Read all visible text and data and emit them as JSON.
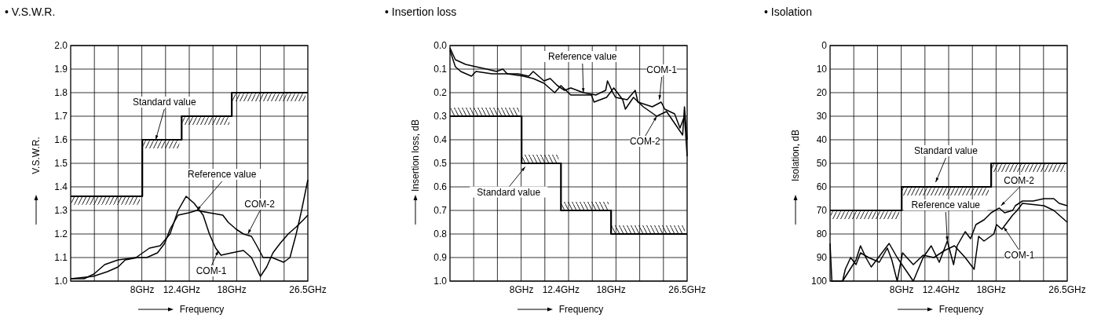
{
  "chart_data": [
    {
      "type": "line",
      "title": "• V.S.W.R.",
      "xlabel": "Frequency",
      "ylabel": "V.S.W.R.",
      "xlim": [
        0,
        26.5
      ],
      "xticks": [
        {
          "value": 8,
          "label": "8GHz"
        },
        {
          "value": 12.4,
          "label": "12.4GHz"
        },
        {
          "value": 18,
          "label": "18GHz"
        },
        {
          "value": 26.5,
          "label": "26.5GHz"
        },
        {
          "value": 2.65,
          "label": null
        },
        {
          "value": 5.3,
          "label": null
        },
        {
          "value": 7.95,
          "label": null
        },
        {
          "value": 10.6,
          "label": null
        },
        {
          "value": 13.25,
          "label": null
        },
        {
          "value": 15.9,
          "label": null
        },
        {
          "value": 18.55,
          "label": null
        },
        {
          "value": 21.2,
          "label": null
        },
        {
          "value": 23.85,
          "label": null
        }
      ],
      "ylim": [
        1.0,
        2.0
      ],
      "yticks": [
        {
          "value": 1.0,
          "label": "1.0"
        },
        {
          "value": 1.1,
          "label": "1.1"
        },
        {
          "value": 1.2,
          "label": "1.2"
        },
        {
          "value": 1.3,
          "label": "1.3"
        },
        {
          "value": 1.4,
          "label": "1.4"
        },
        {
          "value": 1.5,
          "label": "1.5"
        },
        {
          "value": 1.6,
          "label": "1.6"
        },
        {
          "value": 1.7,
          "label": "1.7"
        },
        {
          "value": 1.8,
          "label": "1.8"
        },
        {
          "value": 1.9,
          "label": "1.9"
        },
        {
          "value": 2.0,
          "label": "2.0"
        }
      ],
      "grid": true,
      "annotations": [
        {
          "text": "Standard value",
          "x": 9.5,
          "y": 1.6
        },
        {
          "text": "Reference value",
          "x": 14.1,
          "y": 1.3
        },
        {
          "text": "COM-2",
          "x": 19.8,
          "y": 1.2
        },
        {
          "text": "COM-1",
          "x": 16.5,
          "y": 1.13
        }
      ],
      "series": [
        {
          "type": "step",
          "color": "#000000",
          "x": [
            0,
            8,
            12.4,
            18,
            26.5
          ],
          "values": [
            1.36,
            1.6,
            1.7,
            1.8,
            1.8
          ]
        },
        {
          "color": "#000000",
          "x": [
            0,
            1.5,
            2.6,
            3.8,
            5.3,
            7.3,
            8.8,
            10.0,
            11.1,
            12.0,
            12.9,
            13.8,
            14.8,
            15.5,
            16.2,
            16.8,
            18.0,
            19.3,
            20.2,
            21.2,
            21.9,
            22.6,
            23.4,
            24.3,
            25.2,
            26.0,
            26.5
          ],
          "values": [
            1.01,
            1.01,
            1.03,
            1.07,
            1.09,
            1.1,
            1.14,
            1.15,
            1.2,
            1.3,
            1.36,
            1.33,
            1.28,
            1.2,
            1.14,
            1.11,
            1.12,
            1.13,
            1.1,
            1.02,
            1.06,
            1.12,
            1.16,
            1.2,
            1.23,
            1.26,
            1.28
          ]
        },
        {
          "color": "#000000",
          "x": [
            0,
            2.5,
            4.1,
            5.3,
            6.1,
            7.5,
            8.5,
            9.7,
            10.5,
            11.1,
            12.0,
            13.2,
            14.1,
            15.5,
            17.0,
            17.6,
            18.5,
            19.3,
            20.2,
            20.8,
            21.5,
            22.5,
            23.8,
            24.5,
            25.2,
            25.8,
            26.5
          ],
          "values": [
            1.01,
            1.02,
            1.04,
            1.06,
            1.09,
            1.1,
            1.1,
            1.12,
            1.16,
            1.22,
            1.28,
            1.29,
            1.3,
            1.29,
            1.28,
            1.25,
            1.22,
            1.2,
            1.19,
            1.15,
            1.1,
            1.1,
            1.08,
            1.1,
            1.2,
            1.3,
            1.43
          ]
        }
      ]
    },
    {
      "type": "line",
      "title": "• Insertion loss",
      "xlabel": "Frequency",
      "ylabel": "Insertion loss, dB",
      "xlim": [
        0,
        26.5
      ],
      "xticks": [
        {
          "value": 8,
          "label": "8GHz"
        },
        {
          "value": 12.4,
          "label": "12.4GHz"
        },
        {
          "value": 18,
          "label": "18GHz"
        },
        {
          "value": 26.5,
          "label": "26.5GHz"
        },
        {
          "value": 2.65,
          "label": null
        },
        {
          "value": 5.3,
          "label": null
        },
        {
          "value": 7.95,
          "label": null
        },
        {
          "value": 10.6,
          "label": null
        },
        {
          "value": 13.25,
          "label": null
        },
        {
          "value": 15.9,
          "label": null
        },
        {
          "value": 18.55,
          "label": null
        },
        {
          "value": 21.2,
          "label": null
        },
        {
          "value": 23.85,
          "label": null
        }
      ],
      "ylim": [
        1.0,
        0.0
      ],
      "yticks": [
        {
          "value": 0.0,
          "label": "0.0"
        },
        {
          "value": 0.1,
          "label": "0.1"
        },
        {
          "value": 0.2,
          "label": "0.2"
        },
        {
          "value": 0.3,
          "label": "0.3"
        },
        {
          "value": 0.4,
          "label": "0.4"
        },
        {
          "value": 0.5,
          "label": "0.5"
        },
        {
          "value": 0.6,
          "label": "0.6"
        },
        {
          "value": 0.7,
          "label": "0.7"
        },
        {
          "value": 0.8,
          "label": "0.8"
        },
        {
          "value": 0.9,
          "label": "0.9"
        },
        {
          "value": 1.0,
          "label": "1.0"
        }
      ],
      "grid": true,
      "annotations": [
        {
          "text": "Standard value",
          "x": 8.4,
          "y": 0.515
        },
        {
          "text": "Reference value",
          "x": 14.9,
          "y": 0.2
        },
        {
          "text": "COM-1",
          "x": 23.4,
          "y": 0.23
        },
        {
          "text": "COM-2",
          "x": 23.1,
          "y": 0.3
        }
      ],
      "series": [
        {
          "type": "step",
          "color": "#000000",
          "x": [
            0,
            8,
            12.4,
            18,
            26.5
          ],
          "values": [
            0.3,
            0.5,
            0.7,
            0.8,
            0.8
          ]
        },
        {
          "color": "#000000",
          "x": [
            0,
            0.6,
            1.75,
            2.9,
            4.1,
            5.2,
            5.9,
            6.4,
            7.6,
            8.8,
            9.3,
            10.5,
            11.2,
            12.0,
            12.8,
            13.5,
            14.9,
            16.3,
            17.4,
            17.6,
            18.2,
            18.5,
            19.8,
            20.7,
            21.0,
            22.6,
            23.6,
            24.0,
            25.1,
            25.7,
            26.2,
            26.5
          ],
          "values": [
            0.01,
            0.06,
            0.08,
            0.09,
            0.1,
            0.11,
            0.1,
            0.12,
            0.12,
            0.13,
            0.11,
            0.15,
            0.14,
            0.17,
            0.19,
            0.18,
            0.2,
            0.21,
            0.19,
            0.15,
            0.2,
            0.22,
            0.23,
            0.19,
            0.24,
            0.26,
            0.24,
            0.27,
            0.29,
            0.35,
            0.3,
            0.47
          ]
        },
        {
          "color": "#000000",
          "x": [
            0,
            0.6,
            1.2,
            2.4,
            2.9,
            4.7,
            6.4,
            8.2,
            9.3,
            10.5,
            11.7,
            12.4,
            13.5,
            15.8,
            16.1,
            17.5,
            18.3,
            19.3,
            19.6,
            20.5,
            21.6,
            23.1,
            24.2,
            25.1,
            26.0,
            26.2,
            26.5
          ],
          "values": [
            0.02,
            0.09,
            0.11,
            0.13,
            0.11,
            0.12,
            0.12,
            0.13,
            0.14,
            0.16,
            0.2,
            0.17,
            0.21,
            0.21,
            0.24,
            0.22,
            0.18,
            0.23,
            0.27,
            0.22,
            0.26,
            0.3,
            0.28,
            0.33,
            0.38,
            0.26,
            0.4
          ]
        }
      ]
    },
    {
      "type": "line",
      "title": "• Isolation",
      "xlabel": "Frequency",
      "ylabel": "Isolation, dB",
      "xlim": [
        0,
        26.5
      ],
      "xticks": [
        {
          "value": 8,
          "label": "8GHz"
        },
        {
          "value": 12.4,
          "label": "12.4GHz"
        },
        {
          "value": 18,
          "label": "18GHz"
        },
        {
          "value": 26.5,
          "label": "26.5GHz"
        },
        {
          "value": 2.65,
          "label": null
        },
        {
          "value": 5.3,
          "label": null
        },
        {
          "value": 7.95,
          "label": null
        },
        {
          "value": 10.6,
          "label": null
        },
        {
          "value": 13.25,
          "label": null
        },
        {
          "value": 15.9,
          "label": null
        },
        {
          "value": 18.55,
          "label": null
        },
        {
          "value": 21.2,
          "label": null
        },
        {
          "value": 23.85,
          "label": null
        }
      ],
      "ylim": [
        100,
        0
      ],
      "yticks": [
        0,
        10,
        20,
        30,
        40,
        50,
        60,
        70,
        80,
        90,
        100
      ],
      "grid": true,
      "annotations": [
        {
          "text": "Standard value",
          "x": 11.8,
          "y": 58
        },
        {
          "text": "Reference value",
          "x": 13.1,
          "y": 83
        },
        {
          "text": "COM-2",
          "x": 19.1,
          "y": 68
        },
        {
          "text": "COM-1",
          "x": 19.4,
          "y": 77
        }
      ],
      "series": [
        {
          "type": "step",
          "color": "#000000",
          "x": [
            0,
            8,
            18,
            26.5
          ],
          "values": [
            70,
            60,
            50,
            50
          ]
        },
        {
          "color": "#000000",
          "x": [
            0,
            0.2,
            1.4,
            1.7,
            2.3,
            2.9,
            3.4,
            4.3,
            5.5,
            6.4,
            6.9,
            7.5,
            8.1,
            9.3,
            10.4,
            11.6,
            12.8,
            13.9,
            15.1,
            16.1,
            16.6,
            17.2,
            18.3,
            18.6,
            19.2,
            20.4,
            20.9,
            21.5,
            23.9,
            25.0,
            25.6,
            26.5
          ],
          "values": [
            84,
            100,
            100,
            95,
            90,
            93,
            88,
            90,
            92,
            86,
            91,
            100,
            88,
            93,
            89,
            90,
            87,
            85,
            90,
            95,
            81,
            83,
            80,
            76,
            78,
            72,
            70,
            67,
            68,
            70,
            72,
            75
          ]
        },
        {
          "color": "#000000",
          "x": [
            1.4,
            2.9,
            3.4,
            4.0,
            4.6,
            5.8,
            6.6,
            7.5,
            9.3,
            10.4,
            11.3,
            12.2,
            13.1,
            13.8,
            14.2,
            15.1,
            15.7,
            16.3,
            17.2,
            18.0,
            18.9,
            19.5,
            20.4,
            20.7,
            21.5,
            22.7,
            23.9,
            25.0,
            25.6,
            26.5
          ],
          "values": [
            100,
            91,
            85,
            90,
            94,
            88,
            84,
            90,
            100,
            90,
            85,
            92,
            83,
            93,
            85,
            79,
            82,
            76,
            74,
            71,
            69,
            71,
            70,
            68,
            66,
            66,
            65,
            65,
            67,
            68
          ]
        }
      ]
    }
  ]
}
